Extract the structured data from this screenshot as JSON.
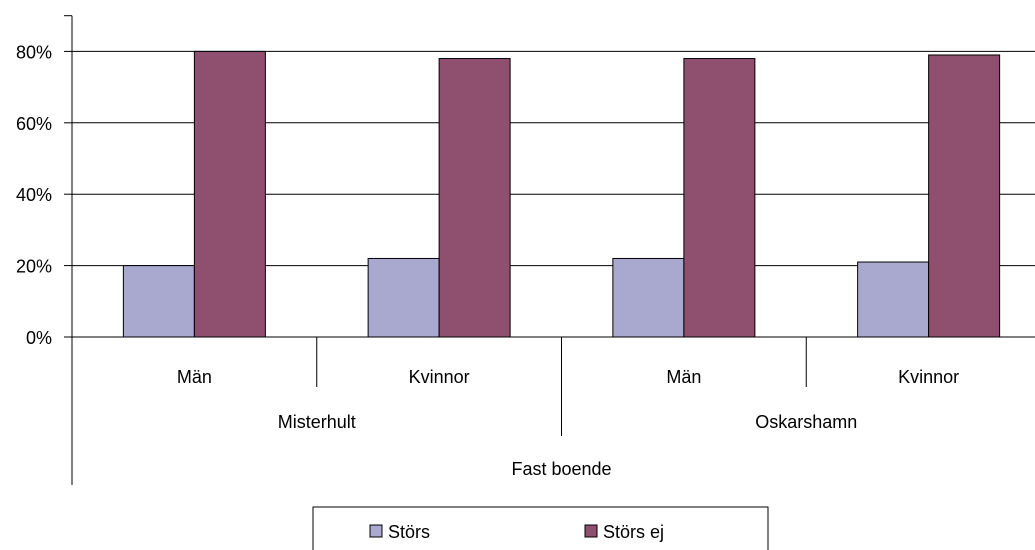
{
  "chart_data": {
    "type": "bar",
    "title": "",
    "xlabel": "",
    "ylabel": "",
    "ylim": [
      0,
      0.9
    ],
    "y_ticks": [
      0,
      0.2,
      0.4,
      0.6,
      0.8
    ],
    "y_tick_labels": [
      "0%",
      "20%",
      "40%",
      "60%",
      "80%"
    ],
    "categories": [
      "Män",
      "Kvinnor",
      "Män",
      "Kvinnor"
    ],
    "groups": [
      {
        "label": "Misterhult",
        "span": 2
      },
      {
        "label": "Oskarshamn",
        "span": 2
      }
    ],
    "outer_group": "Fast boende",
    "series": [
      {
        "name": "Störs",
        "color": "#a9a9cf",
        "values": [
          0.2,
          0.22,
          0.22,
          0.21
        ]
      },
      {
        "name": "Störs ej",
        "color": "#8f4f6f",
        "values": [
          0.8,
          0.78,
          0.78,
          0.79
        ]
      }
    ],
    "grid": true,
    "legend": "bottom"
  }
}
